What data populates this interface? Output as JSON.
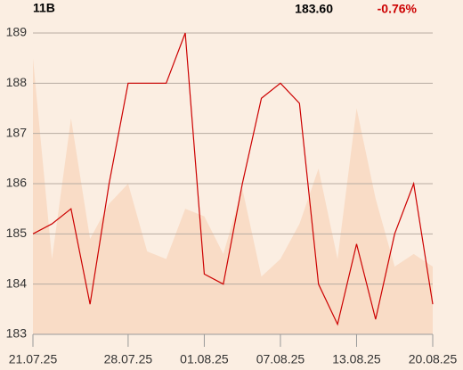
{
  "chart_data": {
    "type": "line",
    "title": "11B",
    "annotations": [
      {
        "text": "183.60",
        "color": "#000000"
      },
      {
        "text": "-0.76%",
        "color": "#cc0000"
      }
    ],
    "x": [
      0,
      1,
      2,
      3,
      4,
      5,
      6,
      7,
      8,
      9,
      10,
      11,
      12,
      13,
      14,
      15,
      16,
      17,
      18,
      19,
      20,
      21
    ],
    "xlim": [
      0,
      21
    ],
    "xticks": [
      {
        "value": 0,
        "label": "21.07.25"
      },
      {
        "value": 5,
        "label": "28.07.25"
      },
      {
        "value": 9,
        "label": "01.08.25"
      },
      {
        "value": 13,
        "label": "07.08.25"
      },
      {
        "value": 17,
        "label": "13.08.25"
      },
      {
        "value": 21,
        "label": "20.08.25"
      }
    ],
    "ylim": [
      183,
      189
    ],
    "yticks": [
      183,
      184,
      185,
      186,
      187,
      188,
      189
    ],
    "grid": true,
    "series": [
      {
        "kind": "area",
        "color": "#f9dcc6",
        "values": [
          188.5,
          184.5,
          187.3,
          184.9,
          185.6,
          186.0,
          184.65,
          184.5,
          185.5,
          185.35,
          184.6,
          185.9,
          184.15,
          184.5,
          185.2,
          186.3,
          184.5,
          187.5,
          185.7,
          184.35,
          184.6,
          184.35
        ]
      },
      {
        "kind": "line",
        "color": "#cc0000",
        "values": [
          185.0,
          185.2,
          185.5,
          183.6,
          186.0,
          188.0,
          188.0,
          188.0,
          189.0,
          184.2,
          184.0,
          186.0,
          187.7,
          188.0,
          187.6,
          184.0,
          183.2,
          184.8,
          183.3,
          185.0,
          186.0,
          183.6
        ]
      }
    ]
  }
}
